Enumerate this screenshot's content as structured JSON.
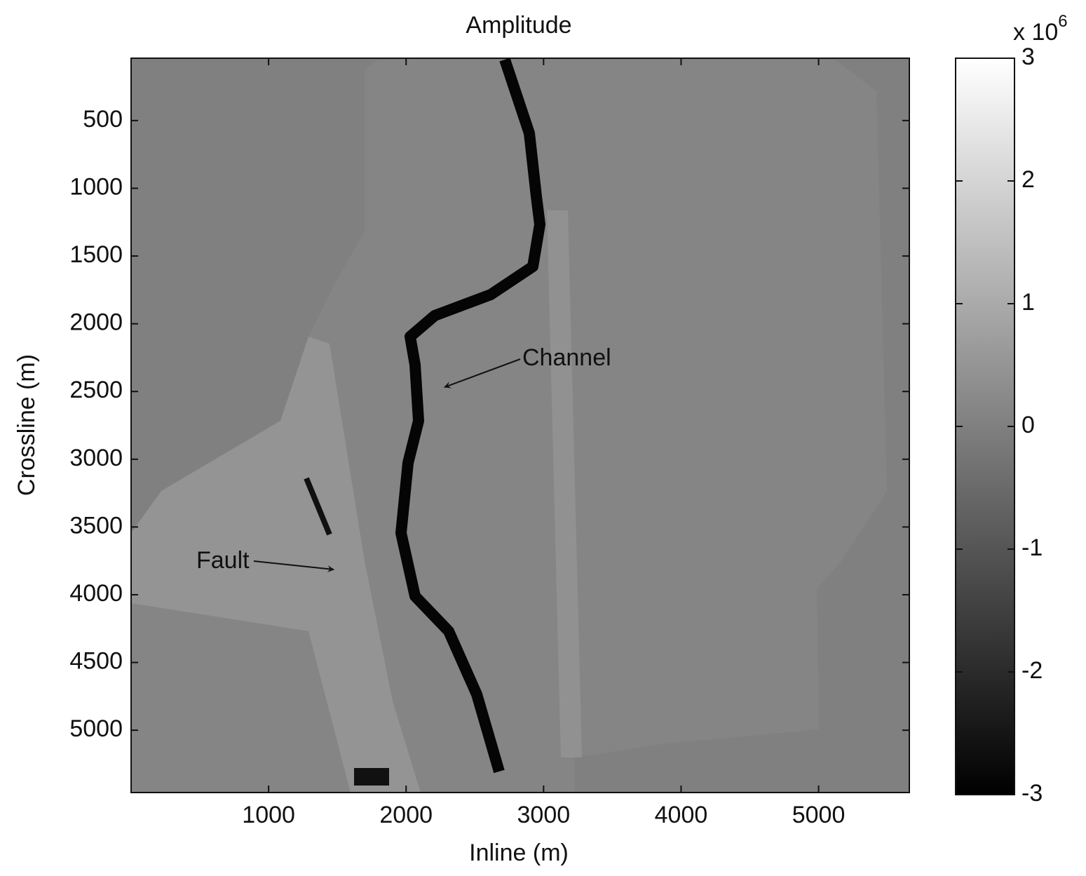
{
  "chart_data": {
    "type": "image",
    "title": "Amplitude",
    "xlabel": "Inline (m)",
    "ylabel": "Crossline (m)",
    "xlim": [
      0,
      5660
    ],
    "ylim": [
      5460,
      40
    ],
    "xticks": [
      1000,
      2000,
      3000,
      4000,
      5000
    ],
    "yticks": [
      500,
      1000,
      1500,
      2000,
      2500,
      3000,
      3500,
      4000,
      4500,
      5000
    ],
    "colormap": "gray",
    "colorbar": {
      "lim": [
        -3,
        3
      ],
      "ticks": [
        -3,
        -2,
        -1,
        0,
        1,
        2,
        3
      ],
      "scale_label": "x 10",
      "scale_exponent": "6"
    },
    "annotations": [
      {
        "text": "Channel"
      },
      {
        "text": "Fault"
      }
    ]
  }
}
